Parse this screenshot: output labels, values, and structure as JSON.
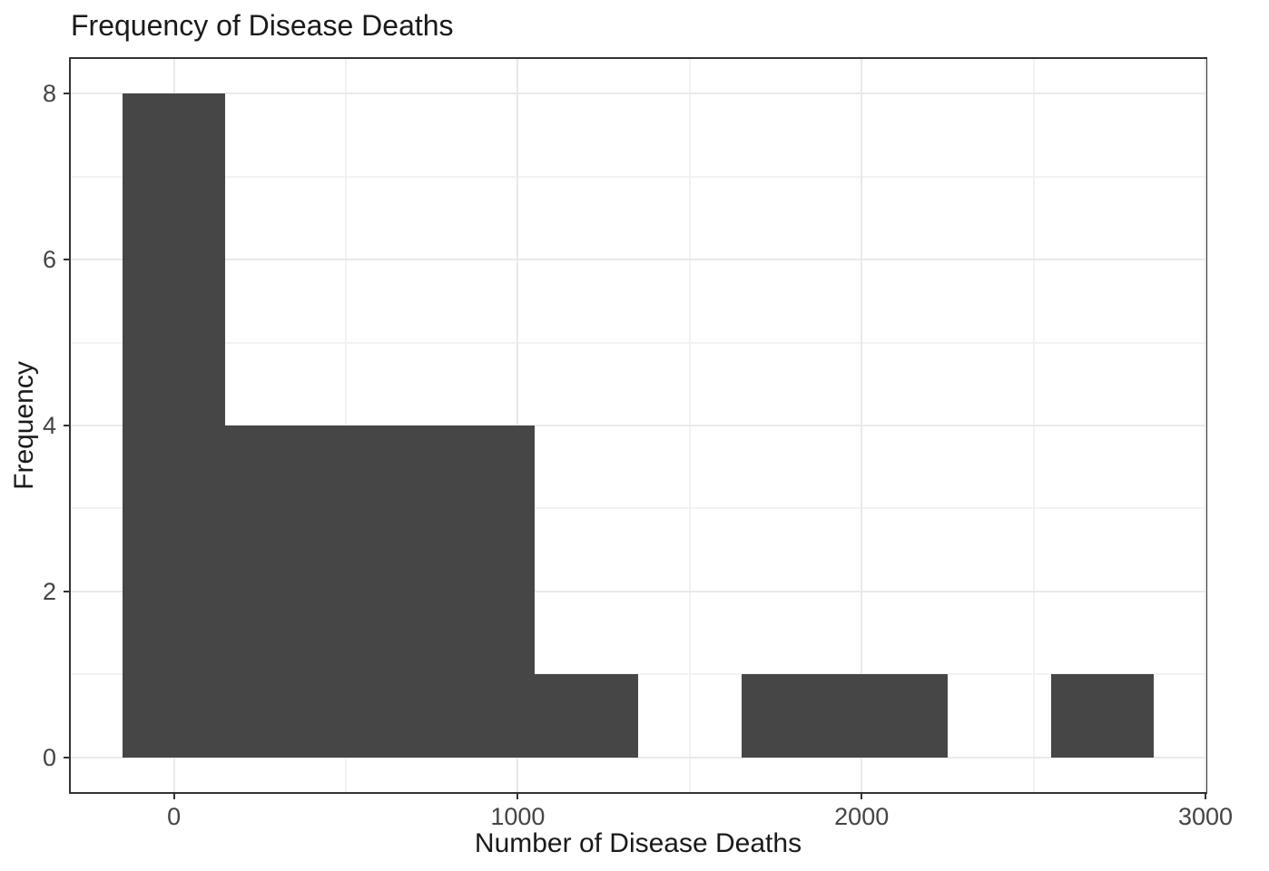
{
  "chart_data": {
    "type": "bar",
    "subtype": "histogram",
    "title": "Frequency of Disease Deaths",
    "xlabel": "Number of Disease Deaths",
    "ylabel": "Frequency",
    "bin_width": 300,
    "bins": [
      {
        "x0": -150,
        "x1": 150,
        "count": 8
      },
      {
        "x0": 150,
        "x1": 450,
        "count": 4
      },
      {
        "x0": 450,
        "x1": 750,
        "count": 4
      },
      {
        "x0": 750,
        "x1": 1050,
        "count": 4
      },
      {
        "x0": 1050,
        "x1": 1350,
        "count": 1
      },
      {
        "x0": 1350,
        "x1": 1650,
        "count": 0
      },
      {
        "x0": 1650,
        "x1": 1950,
        "count": 1
      },
      {
        "x0": 1950,
        "x1": 2250,
        "count": 1
      },
      {
        "x0": 2250,
        "x1": 2550,
        "count": 0
      },
      {
        "x0": 2550,
        "x1": 2850,
        "count": 1
      }
    ],
    "xlim": [
      -300,
      3000
    ],
    "ylim": [
      -0.42,
      8.42
    ],
    "x_ticks": [
      {
        "value": 0,
        "label": "0"
      },
      {
        "value": 1000,
        "label": "1000"
      },
      {
        "value": 2000,
        "label": "2000"
      },
      {
        "value": 3000,
        "label": "3000"
      }
    ],
    "y_ticks": [
      {
        "value": 0,
        "label": "0"
      },
      {
        "value": 2,
        "label": "2"
      },
      {
        "value": 4,
        "label": "4"
      },
      {
        "value": 6,
        "label": "6"
      },
      {
        "value": 8,
        "label": "8"
      }
    ],
    "x_minor_gridlines": [
      500,
      1500,
      2500
    ],
    "y_minor_gridlines": [
      1,
      3,
      5,
      7
    ],
    "grid": true,
    "legend": "none",
    "colors": {
      "bar_fill": "#464646",
      "panel_border": "#333333",
      "grid_major": "#e9e9e9",
      "grid_minor": "#f2f2f2",
      "tick_mark": "#333333",
      "tick_label": "#444444",
      "title_text": "#1a1a1a"
    }
  }
}
